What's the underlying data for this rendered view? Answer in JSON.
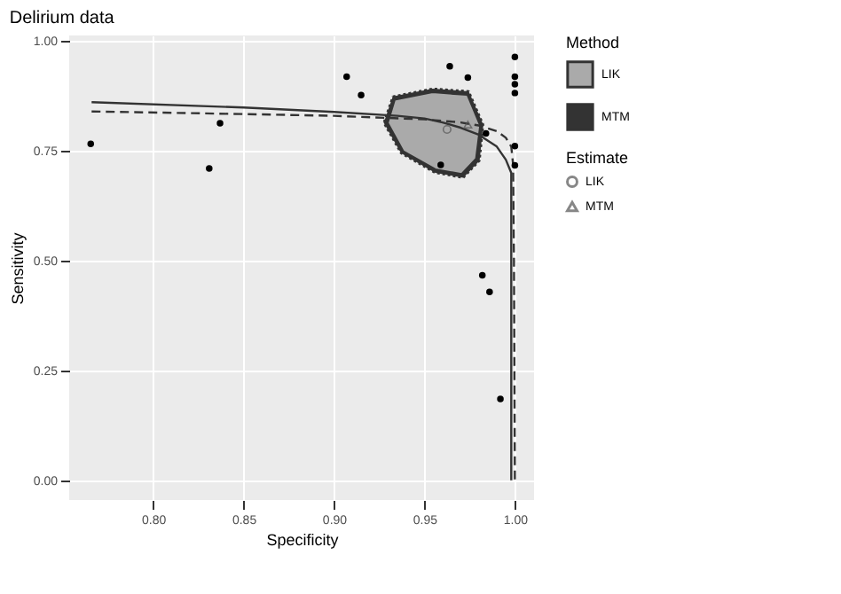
{
  "chart_data": {
    "type": "scatter",
    "title": "Delirium data",
    "xlabel": "Specificity",
    "ylabel": "Sensitivity",
    "legend_title": "Method",
    "annotations": [
      "Estimate"
    ],
    "xlim": [
      0.7536,
      1.0106
    ],
    "ylim": [
      -0.045,
      1.013
    ],
    "xticks": [
      {
        "value": 0.8,
        "label": "0.80"
      },
      {
        "value": 0.85,
        "label": "0.85"
      },
      {
        "value": 0.9,
        "label": "0.90"
      },
      {
        "value": 0.95,
        "label": "0.95"
      },
      {
        "value": 1.0,
        "label": "1.00"
      }
    ],
    "yticks": [
      {
        "value": 0,
        "label": "0.00"
      },
      {
        "value": 0.25,
        "label": "0.25"
      },
      {
        "value": 0.5,
        "label": "0.50"
      },
      {
        "value": 0.75,
        "label": "0.75"
      },
      {
        "value": 1.0,
        "label": "1.00"
      }
    ],
    "grid": true,
    "legend": "right",
    "series": [
      {
        "name": "MTM",
        "type": "area",
        "color": "#333333",
        "line_style": "dotted",
        "x": [
          0.9325,
          0.9545,
          0.9745,
          0.9825,
          0.9805,
          0.9715,
          0.956,
          0.937,
          0.9275,
          0.9325
        ],
        "values": [
          0.874,
          0.892,
          0.886,
          0.81,
          0.728,
          0.689,
          0.7,
          0.745,
          0.814,
          0.874
        ]
      },
      {
        "name": "LIK",
        "type": "area",
        "color": "#aaaaaa",
        "line_style": "solid",
        "x": [
          0.9335,
          0.9545,
          0.9738,
          0.9809,
          0.9786,
          0.9705,
          0.956,
          0.9383,
          0.9296,
          0.9335
        ],
        "values": [
          0.867,
          0.884,
          0.878,
          0.808,
          0.732,
          0.697,
          0.708,
          0.749,
          0.814,
          0.867
        ]
      },
      {
        "type": "line",
        "color": "#333333",
        "line_style": "solid",
        "x": [
          0.766,
          0.85,
          0.9,
          0.935,
          0.95,
          0.96,
          0.97,
          0.98,
          0.99,
          0.995,
          0.998,
          0.998
        ],
        "values": [
          0.861,
          0.849,
          0.839,
          0.83,
          0.824,
          0.815,
          0.803,
          0.787,
          0.76,
          0.73,
          0.7,
          0.0
        ]
      },
      {
        "type": "line",
        "color": "#333333",
        "line_style": "dashed",
        "x": [
          0.766,
          0.85,
          0.9,
          0.95,
          0.97,
          0.98,
          0.99,
          0.995,
          0.998,
          0.999,
          0.9995,
          1.0
        ],
        "values": [
          0.84,
          0.834,
          0.83,
          0.822,
          0.815,
          0.808,
          0.795,
          0.78,
          0.76,
          0.72,
          0.5,
          0.0
        ]
      },
      {
        "color": "#000000",
        "marker": "circle",
        "x": [
          0.7655,
          0.831,
          0.837,
          0.907,
          0.915,
          0.964,
          0.974,
          1.0,
          1.0,
          1.0,
          1.0,
          0.959,
          0.984,
          1.0,
          1.0,
          0.982,
          0.986,
          0.992
        ],
        "values": [
          0.766,
          0.71,
          0.813,
          0.919,
          0.877,
          0.943,
          0.917,
          0.964,
          0.919,
          0.902,
          0.882,
          0.718,
          0.79,
          0.761,
          0.717,
          0.467,
          0.429,
          0.185
        ]
      },
      {
        "name": "LIK",
        "type": "scatter",
        "color": "#555555",
        "marker": "circle",
        "x": [
          0.9625
        ],
        "values": [
          0.799
        ]
      },
      {
        "name": "MTM",
        "type": "scatter",
        "color": "#555555",
        "marker": "triangle",
        "x": [
          0.974
        ],
        "values": [
          0.81
        ]
      }
    ]
  }
}
